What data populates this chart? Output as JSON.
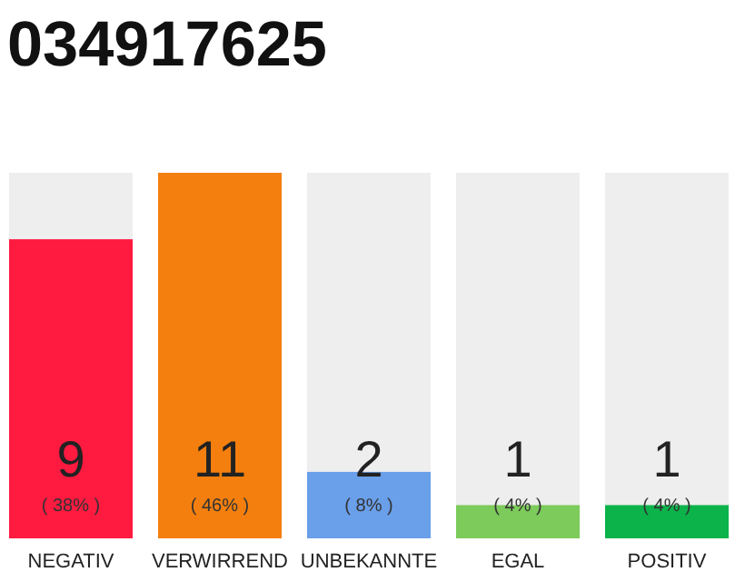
{
  "chart_data": {
    "type": "bar",
    "title": "034917625",
    "categories": [
      "NEGATIV",
      "VERWIRREND",
      "UNBEKANNTE",
      "EGAL",
      "POSITIV"
    ],
    "values": [
      9,
      11,
      2,
      1,
      1
    ],
    "colors": [
      "#ff1a40",
      "#f47f0e",
      "#6a9fea",
      "#7ccb5b",
      "#0bb34a"
    ],
    "ylim": [
      0,
      11
    ],
    "data_labels": true,
    "tick_labels": "x",
    "annotations": [
      "( 38% )",
      "( 46% )",
      "( 8% )",
      "( 4% )",
      "( 4% )"
    ]
  }
}
